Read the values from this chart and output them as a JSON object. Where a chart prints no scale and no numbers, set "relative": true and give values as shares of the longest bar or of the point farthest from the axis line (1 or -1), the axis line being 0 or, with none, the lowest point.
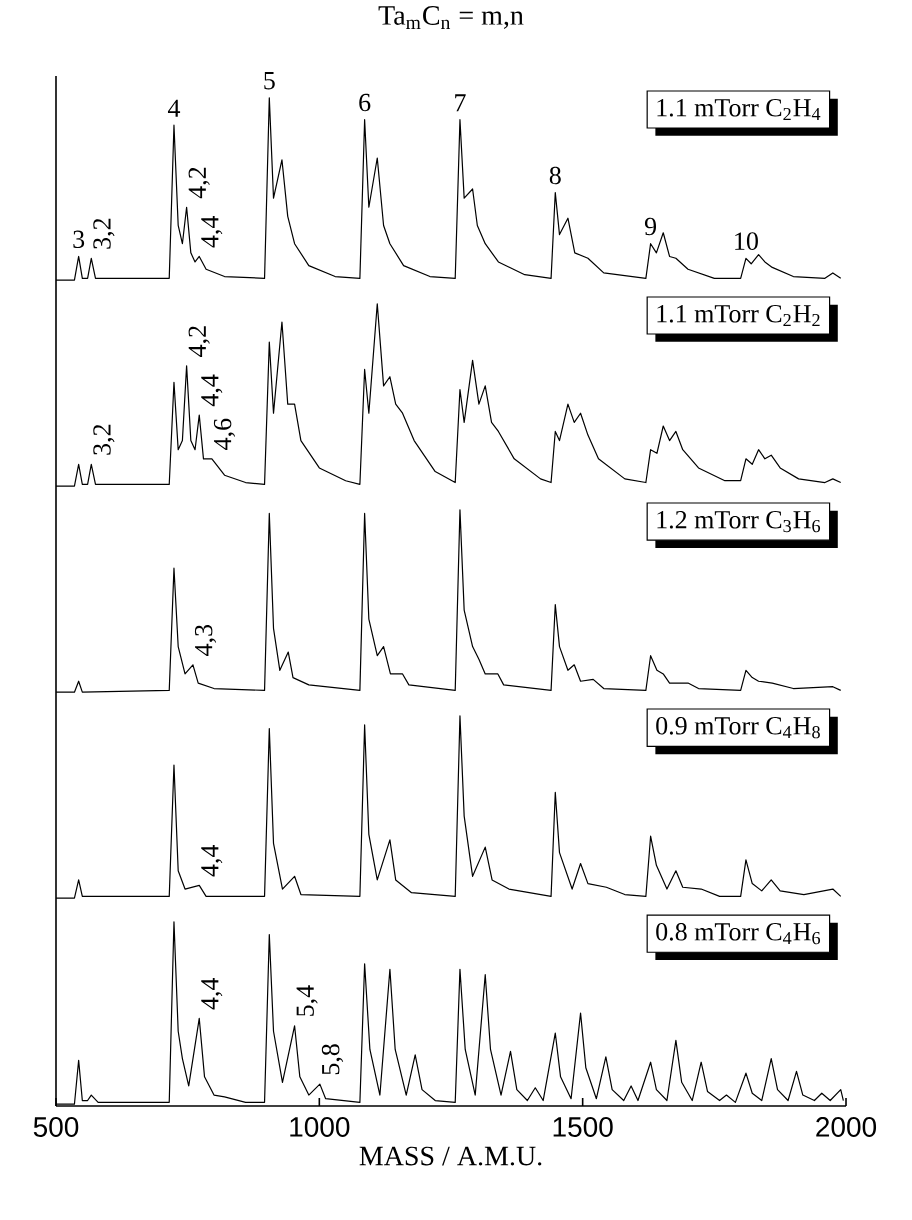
{
  "chart_data": [
    {
      "type": "line",
      "title": "Ta$_{m}$C$_{n}$ = m,n",
      "relative": true,
      "xlim": [
        500,
        2000
      ],
      "tick_labels": false,
      "series": [
        {
          "color": "#000000",
          "x": [
            500,
            535,
            543,
            550,
            560,
            567,
            575,
            715,
            724,
            732,
            740,
            748,
            756,
            764,
            772,
            785,
            820,
            896,
            905,
            913,
            929,
            940,
            953,
            980,
            1030,
            1077,
            1086,
            1094,
            1110,
            1122,
            1134,
            1160,
            1210,
            1258,
            1267,
            1275,
            1291,
            1300,
            1315,
            1340,
            1390,
            1440,
            1448,
            1456,
            1472,
            1485,
            1510,
            1540,
            1620,
            1629,
            1640,
            1653,
            1665,
            1677,
            1700,
            1750,
            1800,
            1810,
            1820,
            1834,
            1846,
            1860,
            1900,
            1960,
            1975,
            1990
          ],
          "values": [
            0,
            0,
            0.13,
            0.01,
            0.01,
            0.12,
            0.01,
            0.01,
            0.85,
            0.3,
            0.2,
            0.4,
            0.15,
            0.1,
            0.13,
            0.06,
            0.02,
            0.01,
            1.0,
            0.45,
            0.66,
            0.35,
            0.2,
            0.08,
            0.02,
            0.01,
            0.88,
            0.4,
            0.67,
            0.3,
            0.2,
            0.08,
            0.02,
            0.01,
            0.88,
            0.45,
            0.5,
            0.3,
            0.2,
            0.1,
            0.03,
            0.01,
            0.48,
            0.25,
            0.34,
            0.15,
            0.12,
            0.04,
            0.01,
            0.2,
            0.15,
            0.26,
            0.13,
            0.12,
            0.06,
            0.01,
            0.01,
            0.12,
            0.09,
            0.14,
            0.1,
            0.07,
            0.02,
            0.01,
            0.04,
            0.01
          ]
        }
      ],
      "annotations": [
        {
          "text": "3",
          "x": 543,
          "y": 0.13
        },
        {
          "text": "4",
          "x": 724,
          "y": 0.85
        },
        {
          "text": "5",
          "x": 905,
          "y": 1.0
        },
        {
          "text": "6",
          "x": 1086,
          "y": 0.88
        },
        {
          "text": "7",
          "x": 1267,
          "y": 0.88
        },
        {
          "text": "8",
          "x": 1448,
          "y": 0.48
        },
        {
          "text": "9",
          "x": 1629,
          "y": 0.2
        },
        {
          "text": "10",
          "x": 1810,
          "y": 0.12
        },
        {
          "text": "3,2",
          "x": 567,
          "y": 0.12
        },
        {
          "text": "4,2",
          "x": 748,
          "y": 0.4
        },
        {
          "text": "4,4",
          "x": 772,
          "y": 0.13
        },
        "1.1 mTorr C$_{2}$H$_{4}$"
      ]
    },
    {
      "type": "line",
      "relative": true,
      "xlim": [
        500,
        2000
      ],
      "tick_labels": false,
      "series": [
        {
          "color": "#000000",
          "x": [
            500,
            535,
            543,
            550,
            560,
            567,
            575,
            715,
            724,
            732,
            740,
            748,
            756,
            764,
            772,
            780,
            796,
            820,
            860,
            896,
            905,
            913,
            929,
            940,
            953,
            965,
            1000,
            1050,
            1077,
            1086,
            1094,
            1110,
            1122,
            1134,
            1145,
            1158,
            1180,
            1220,
            1258,
            1267,
            1275,
            1291,
            1303,
            1315,
            1327,
            1340,
            1370,
            1420,
            1440,
            1448,
            1456,
            1472,
            1484,
            1496,
            1510,
            1530,
            1580,
            1620,
            1629,
            1641,
            1653,
            1665,
            1677,
            1690,
            1720,
            1770,
            1800,
            1810,
            1822,
            1834,
            1846,
            1858,
            1875,
            1910,
            1960,
            1975,
            1990
          ],
          "values": [
            0,
            0,
            0.12,
            0.01,
            0.01,
            0.12,
            0.01,
            0.01,
            0.57,
            0.2,
            0.25,
            0.66,
            0.25,
            0.2,
            0.39,
            0.15,
            0.15,
            0.06,
            0.02,
            0.01,
            0.79,
            0.4,
            0.9,
            0.45,
            0.45,
            0.25,
            0.1,
            0.03,
            0.01,
            0.64,
            0.4,
            1.0,
            0.55,
            0.6,
            0.45,
            0.4,
            0.25,
            0.08,
            0.02,
            0.53,
            0.35,
            0.69,
            0.45,
            0.55,
            0.35,
            0.3,
            0.15,
            0.04,
            0.02,
            0.3,
            0.25,
            0.45,
            0.35,
            0.4,
            0.28,
            0.15,
            0.04,
            0.02,
            0.2,
            0.18,
            0.33,
            0.25,
            0.3,
            0.2,
            0.1,
            0.03,
            0.03,
            0.15,
            0.12,
            0.2,
            0.15,
            0.17,
            0.1,
            0.04,
            0.02,
            0.04,
            0.02
          ]
        }
      ],
      "annotations": [
        {
          "text": "3,2",
          "x": 567,
          "y": 0.12
        },
        {
          "text": "4,2",
          "x": 748,
          "y": 0.66
        },
        {
          "text": "4,4",
          "x": 772,
          "y": 0.39
        },
        {
          "text": "4,6",
          "x": 796,
          "y": 0.15
        },
        "1.1 mTorr C$_{2}$H$_{2}$"
      ]
    },
    {
      "type": "line",
      "relative": true,
      "xlim": [
        500,
        2000
      ],
      "tick_labels": false,
      "series": [
        {
          "color": "#000000",
          "x": [
            500,
            535,
            543,
            550,
            715,
            724,
            732,
            745,
            760,
            770,
            800,
            896,
            905,
            913,
            925,
            941,
            950,
            980,
            1077,
            1086,
            1094,
            1110,
            1122,
            1135,
            1158,
            1170,
            1258,
            1267,
            1275,
            1291,
            1303,
            1315,
            1339,
            1350,
            1440,
            1448,
            1456,
            1472,
            1484,
            1496,
            1520,
            1540,
            1620,
            1629,
            1641,
            1653,
            1665,
            1700,
            1720,
            1800,
            1810,
            1822,
            1834,
            1860,
            1900,
            1975,
            1990
          ],
          "values": [
            0,
            0,
            0.06,
            0,
            0.01,
            0.68,
            0.25,
            0.1,
            0.15,
            0.05,
            0.02,
            0.01,
            0.98,
            0.35,
            0.12,
            0.22,
            0.08,
            0.04,
            0.01,
            0.98,
            0.4,
            0.2,
            0.25,
            0.1,
            0.1,
            0.04,
            0.01,
            1.0,
            0.45,
            0.25,
            0.18,
            0.1,
            0.1,
            0.04,
            0.01,
            0.48,
            0.25,
            0.12,
            0.15,
            0.06,
            0.07,
            0.02,
            0.01,
            0.2,
            0.12,
            0.1,
            0.05,
            0.05,
            0.02,
            0.01,
            0.12,
            0.08,
            0.06,
            0.05,
            0.02,
            0.03,
            0.01
          ]
        }
      ],
      "annotations": [
        {
          "text": "4,3",
          "x": 760,
          "y": 0.15
        },
        "1.2 mTorr C$_{3}$H$_{6}$"
      ]
    },
    {
      "type": "line",
      "relative": true,
      "xlim": [
        500,
        2000
      ],
      "tick_labels": false,
      "series": [
        {
          "color": "#000000",
          "x": [
            500,
            535,
            543,
            550,
            715,
            724,
            732,
            745,
            772,
            785,
            896,
            905,
            913,
            930,
            953,
            965,
            1077,
            1086,
            1094,
            1110,
            1134,
            1145,
            1175,
            1258,
            1267,
            1275,
            1291,
            1315,
            1328,
            1360,
            1440,
            1448,
            1456,
            1480,
            1496,
            1510,
            1545,
            1580,
            1620,
            1629,
            1640,
            1660,
            1677,
            1690,
            1725,
            1760,
            1800,
            1810,
            1822,
            1840,
            1858,
            1875,
            1920,
            1975,
            1990
          ],
          "values": [
            0,
            0,
            0.1,
            0.01,
            0.01,
            0.73,
            0.15,
            0.05,
            0.07,
            0.01,
            0.01,
            0.93,
            0.3,
            0.05,
            0.12,
            0.02,
            0.01,
            0.95,
            0.35,
            0.1,
            0.32,
            0.1,
            0.03,
            0.01,
            1.0,
            0.45,
            0.12,
            0.28,
            0.1,
            0.05,
            0.01,
            0.58,
            0.25,
            0.05,
            0.19,
            0.08,
            0.06,
            0.02,
            0.01,
            0.34,
            0.18,
            0.05,
            0.15,
            0.06,
            0.05,
            0.01,
            0.01,
            0.21,
            0.08,
            0.04,
            0.1,
            0.04,
            0.02,
            0.05,
            0.01
          ]
        }
      ],
      "annotations": [
        {
          "text": "4,4",
          "x": 772,
          "y": 0.07
        },
        "0.9 mTorr C$_{4}$H$_{8}$"
      ]
    },
    {
      "type": "line",
      "relative": true,
      "xlim": [
        500,
        2000
      ],
      "xticks": [
        500,
        1000,
        1500,
        2000
      ],
      "tick_labels": "x",
      "xlabel": "MASS / A.M.U.",
      "series": [
        {
          "color": "#000000",
          "x": [
            500,
            535,
            543,
            550,
            560,
            567,
            580,
            715,
            724,
            732,
            740,
            752,
            772,
            782,
            800,
            820,
            860,
            896,
            905,
            913,
            930,
            953,
            963,
            980,
            1001,
            1012,
            1077,
            1086,
            1096,
            1115,
            1134,
            1144,
            1165,
            1182,
            1195,
            1220,
            1258,
            1267,
            1277,
            1296,
            1315,
            1325,
            1345,
            1363,
            1375,
            1395,
            1410,
            1425,
            1448,
            1458,
            1478,
            1496,
            1506,
            1526,
            1544,
            1556,
            1578,
            1592,
            1605,
            1629,
            1640,
            1660,
            1677,
            1688,
            1708,
            1725,
            1737,
            1760,
            1773,
            1790,
            1810,
            1822,
            1840,
            1858,
            1870,
            1890,
            1906,
            1918,
            1940,
            1954,
            1970,
            1990,
            1995
          ],
          "values": [
            0,
            0,
            0.24,
            0.02,
            0.02,
            0.05,
            0.01,
            0.01,
            1.0,
            0.4,
            0.25,
            0.1,
            0.47,
            0.15,
            0.05,
            0.04,
            0.01,
            0.01,
            0.93,
            0.4,
            0.12,
            0.43,
            0.15,
            0.05,
            0.11,
            0.03,
            0.01,
            0.77,
            0.3,
            0.05,
            0.74,
            0.3,
            0.05,
            0.27,
            0.08,
            0.02,
            0.01,
            0.74,
            0.3,
            0.05,
            0.71,
            0.3,
            0.05,
            0.29,
            0.08,
            0.02,
            0.09,
            0.02,
            0.39,
            0.15,
            0.03,
            0.5,
            0.2,
            0.03,
            0.26,
            0.08,
            0.02,
            0.1,
            0.02,
            0.23,
            0.08,
            0.02,
            0.35,
            0.12,
            0.02,
            0.23,
            0.07,
            0.02,
            0.05,
            0.01,
            0.17,
            0.06,
            0.02,
            0.25,
            0.08,
            0.02,
            0.18,
            0.05,
            0.02,
            0.06,
            0.02,
            0.08,
            0.02
          ]
        }
      ],
      "annotations": [
        {
          "text": "4,4",
          "x": 772,
          "y": 0.47
        },
        {
          "text": "5,4",
          "x": 953,
          "y": 0.43
        },
        {
          "text": "5,8",
          "x": 1001,
          "y": 0.11
        },
        "0.8 mTorr C$_{4}$H$_{6}$"
      ]
    }
  ]
}
